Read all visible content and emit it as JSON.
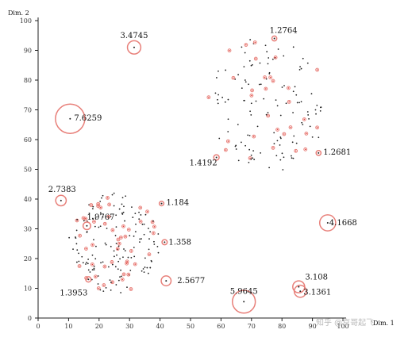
{
  "chart_data": {
    "type": "scatter",
    "title": "",
    "xlabel": "Dim. 1",
    "ylabel": "Dim. 2",
    "xlim": [
      0,
      100
    ],
    "ylim": [
      0,
      100
    ],
    "x_ticks": [
      0,
      10,
      20,
      30,
      40,
      50,
      60,
      70,
      80,
      90,
      100
    ],
    "y_ticks": [
      0,
      10,
      20,
      30,
      40,
      50,
      60,
      70,
      80,
      90,
      100
    ],
    "grid": false,
    "colors": {
      "point": "#222222",
      "highlight": "#e0403a",
      "circle": "#e8807a"
    },
    "outliers": [
      {
        "x": 10.5,
        "y": 67.0,
        "score": 7.6259,
        "label": "7.6259"
      },
      {
        "x": 67.5,
        "y": 5.5,
        "score": 5.9645,
        "label": "5.9645"
      },
      {
        "x": 95.0,
        "y": 32.0,
        "score": 4.1668,
        "label": "4.1668"
      },
      {
        "x": 31.5,
        "y": 91.0,
        "score": 3.4745,
        "label": "3.4745"
      },
      {
        "x": 86.0,
        "y": 9.0,
        "score": 3.1361,
        "label": "3.1361"
      },
      {
        "x": 85.5,
        "y": 10.5,
        "score": 3.108,
        "label": "3.108"
      },
      {
        "x": 7.5,
        "y": 39.5,
        "score": 2.7383,
        "label": "2.7383"
      },
      {
        "x": 42.0,
        "y": 12.5,
        "score": 2.5677,
        "label": "2.5677"
      },
      {
        "x": 16.0,
        "y": 31.0,
        "score": 1.9767,
        "label": "1.9767"
      },
      {
        "x": 16.5,
        "y": 13.0,
        "score": 1.3953,
        "label": "1.3953"
      },
      {
        "x": 41.5,
        "y": 25.5,
        "score": 1.358,
        "label": "1.358"
      },
      {
        "x": 92.0,
        "y": 55.5,
        "score": 1.2681,
        "label": "1.2681"
      },
      {
        "x": 77.5,
        "y": 94.0,
        "score": 1.2764,
        "label": "1.2764"
      },
      {
        "x": 58.5,
        "y": 54.0,
        "score": 1.4192,
        "label": "1.4192"
      },
      {
        "x": 40.5,
        "y": 38.5,
        "score": 1.184,
        "label": "1.184"
      }
    ],
    "clusters": [
      {
        "name": "",
        "cx": 75,
        "cy": 72,
        "rx": 20,
        "ry": 23,
        "n": 150,
        "highlight_ratio": 0.25
      },
      {
        "name": "",
        "cx": 25,
        "cy": 25,
        "rx": 15,
        "ry": 17,
        "n": 190,
        "highlight_ratio": 0.25
      }
    ]
  },
  "watermark": "知乎 @京哥起飞"
}
